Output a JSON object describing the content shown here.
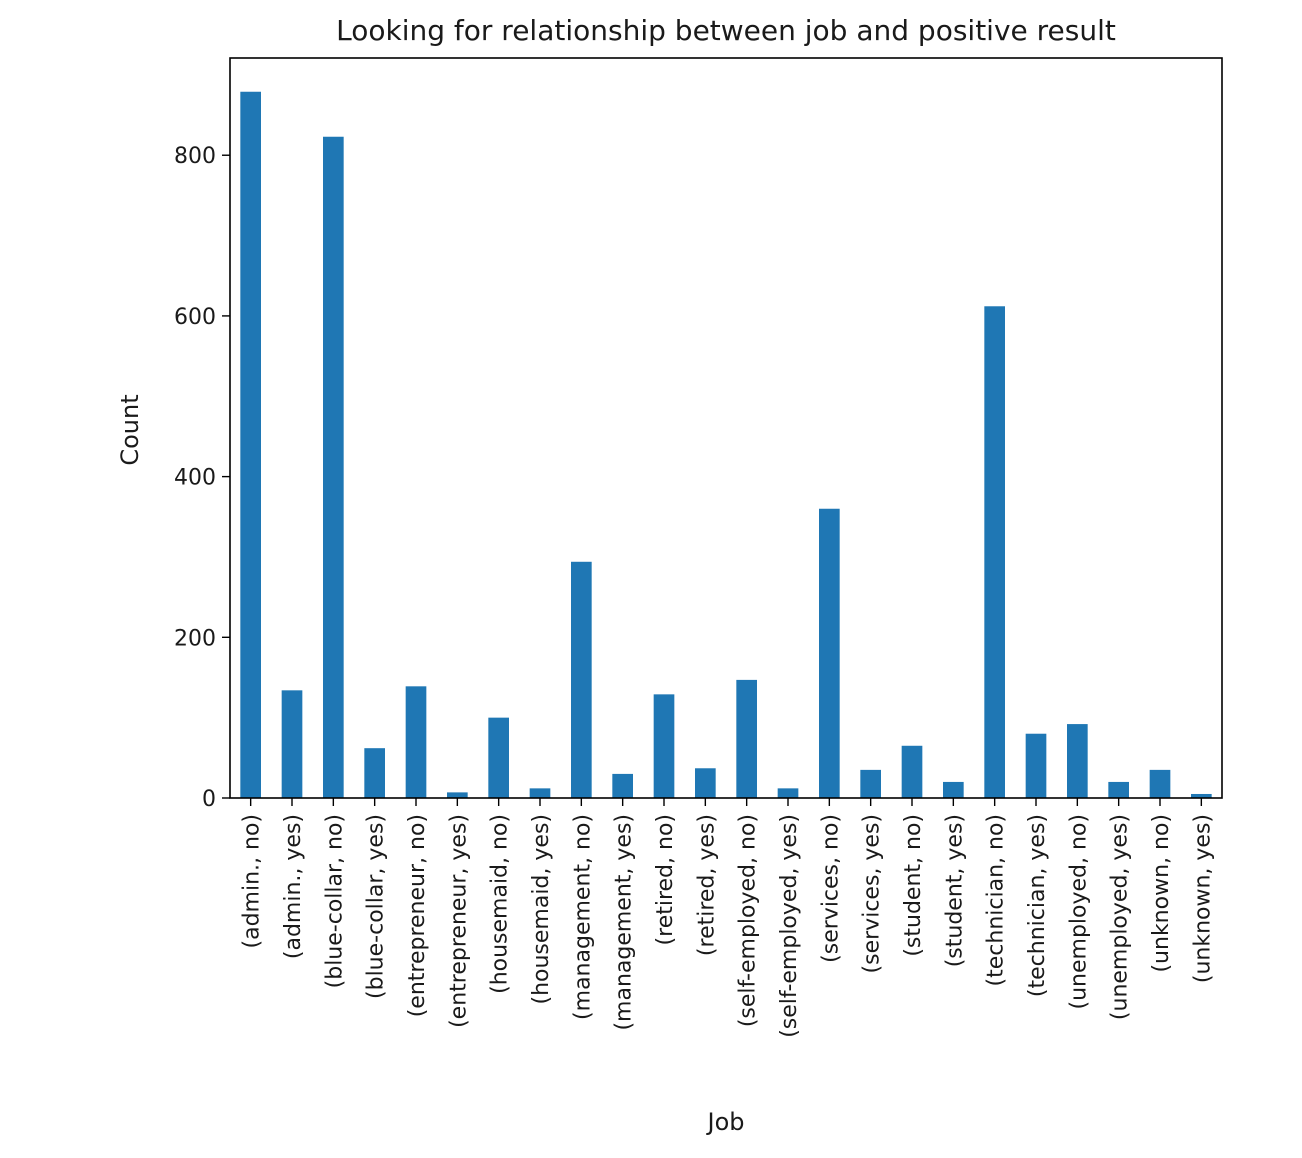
{
  "chart_data": {
    "type": "bar",
    "title": "Looking for relationship between job and positive result",
    "xlabel": "Job",
    "ylabel": "Count",
    "ylim": [
      0,
      921
    ],
    "yticks": [
      0,
      200,
      400,
      600,
      800
    ],
    "grid": false,
    "bar_color": "#1f77b4",
    "categories": [
      "(admin., no)",
      "(admin., yes)",
      "(blue-collar, no)",
      "(blue-collar, yes)",
      "(entrepreneur, no)",
      "(entrepreneur, yes)",
      "(housemaid, no)",
      "(housemaid, yes)",
      "(management, no)",
      "(management, yes)",
      "(retired, no)",
      "(retired, yes)",
      "(self-employed, no)",
      "(self-employed, yes)",
      "(services, no)",
      "(services, yes)",
      "(student, no)",
      "(student, yes)",
      "(technician, no)",
      "(technician, yes)",
      "(unemployed, no)",
      "(unemployed, yes)",
      "(unknown, no)",
      "(unknown, yes)"
    ],
    "values": [
      879,
      134,
      823,
      62,
      139,
      7,
      100,
      12,
      294,
      30,
      129,
      37,
      147,
      12,
      360,
      35,
      65,
      20,
      612,
      80,
      92,
      20,
      35,
      5
    ]
  }
}
